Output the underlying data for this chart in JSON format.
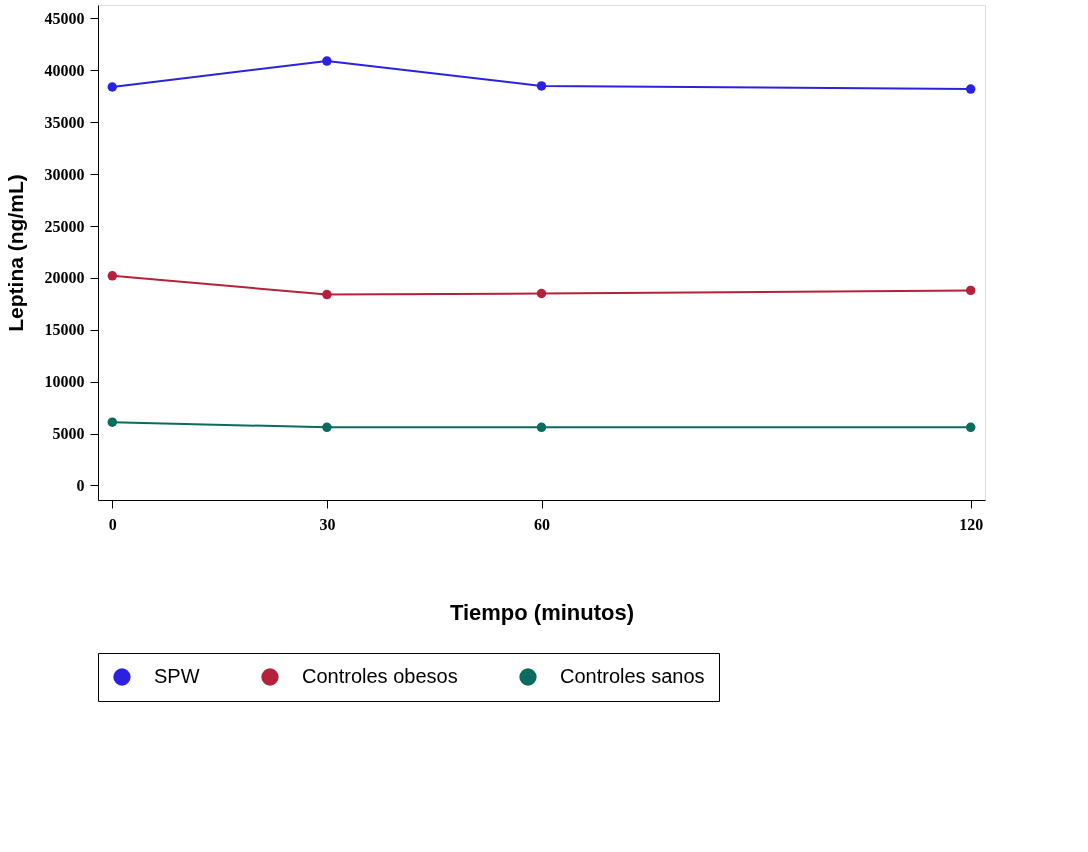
{
  "chart_data": {
    "type": "line",
    "xlabel": "Tiempo (minutos)",
    "ylabel": "Leptina (ng/mL)",
    "x": [
      0,
      30,
      60,
      120
    ],
    "series": [
      {
        "name": "SPW",
        "color": "#2b22e0",
        "values": [
          38400,
          40900,
          38500,
          38200
        ]
      },
      {
        "name": "Controles obesos",
        "color": "#b5213a",
        "values": [
          20200,
          18400,
          18500,
          18800
        ]
      },
      {
        "name": "Controles sanos",
        "color": "#0b6b5e",
        "values": [
          6100,
          5600,
          5600,
          5600
        ]
      }
    ],
    "xlim": [
      -2,
      122
    ],
    "xticks": [
      0,
      30,
      60,
      120
    ],
    "ylim": [
      -1400,
      46300
    ],
    "yticks": [
      0,
      5000,
      10000,
      15000,
      20000,
      25000,
      30000,
      35000,
      40000,
      45000
    ],
    "grid": false,
    "legend": "bottom",
    "marker": "circle",
    "line_style": "solid"
  }
}
